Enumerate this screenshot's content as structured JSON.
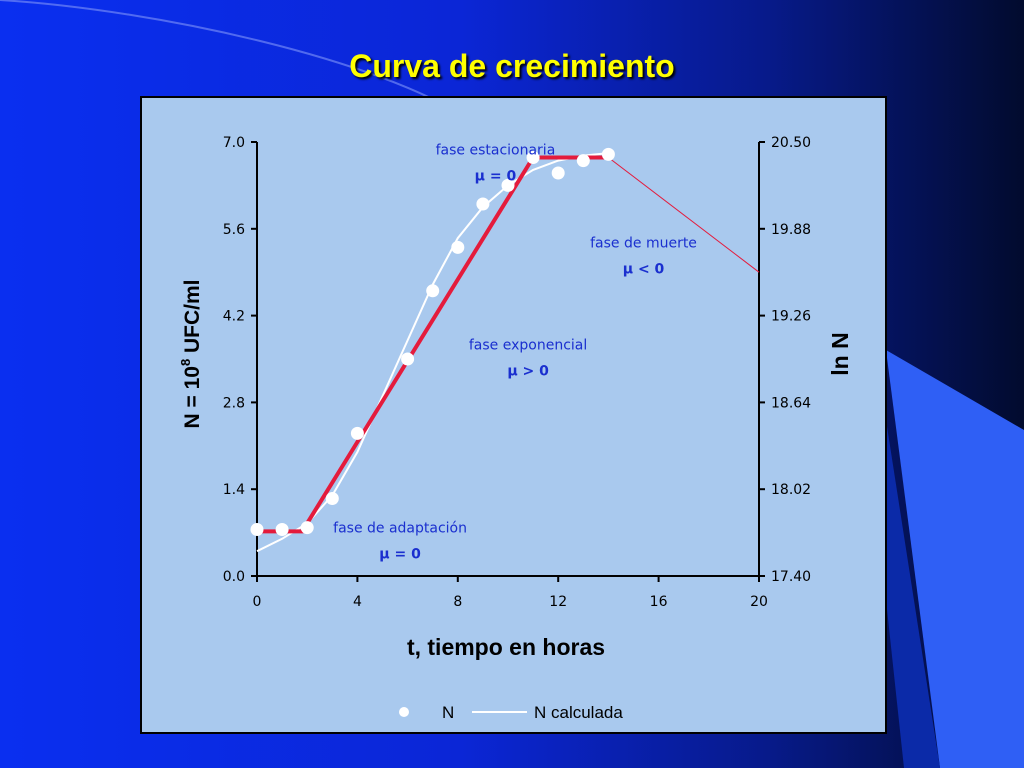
{
  "slide": {
    "title": "Curva de crecimiento"
  },
  "colors": {
    "accent_title": "#ffff00",
    "panel_bg": "#a9c9ee",
    "fit_line": "#e41b3c",
    "calc_line": "#ffffff",
    "death_line": "#e41b3c",
    "phase_text": "#1a2fcf"
  },
  "chart_data": {
    "type": "line",
    "title": "",
    "xlabel": "t, tiempo en horas",
    "ylabel_prefix": "N = 10",
    "ylabel_exp": "8",
    "ylabel_suffix": " UFC/ml",
    "y2label": "ln N",
    "xlim": [
      0,
      20
    ],
    "ylim": [
      0.0,
      7.0
    ],
    "y2lim": [
      17.4,
      20.5
    ],
    "x_ticks": [
      "0",
      "4",
      "8",
      "12",
      "16",
      "20"
    ],
    "y_ticks": [
      "0.0",
      "1.4",
      "2.8",
      "4.2",
      "5.6",
      "7.0"
    ],
    "y2_ticks": [
      "17.40",
      "18.02",
      "18.64",
      "19.26",
      "19.88",
      "20.50"
    ],
    "grid": false,
    "legend_position": "bottom",
    "series": [
      {
        "name": "N",
        "style": "markers",
        "x": [
          0,
          1,
          2,
          3,
          4,
          6,
          7,
          8,
          9,
          10,
          11,
          12,
          13,
          14
        ],
        "y": [
          0.75,
          0.75,
          0.78,
          1.25,
          2.3,
          3.5,
          4.6,
          5.3,
          6.0,
          6.3,
          6.75,
          6.5,
          6.7,
          6.8
        ]
      },
      {
        "name": "N calculada",
        "style": "line",
        "x": [
          0,
          1,
          2,
          3,
          4,
          5,
          6,
          7,
          8,
          9,
          10,
          11,
          12,
          13,
          14
        ],
        "y": [
          0.4,
          0.6,
          0.85,
          1.3,
          2.0,
          2.9,
          3.8,
          4.7,
          5.45,
          5.95,
          6.3,
          6.55,
          6.7,
          6.78,
          6.82
        ]
      },
      {
        "style": "fit",
        "x": [
          0.2,
          1.8,
          11,
          14
        ],
        "y": [
          0.72,
          0.72,
          6.75,
          6.75
        ]
      },
      {
        "style": "thin",
        "x": [
          14,
          20
        ],
        "y": [
          6.75,
          4.9
        ]
      }
    ],
    "annotations": [
      {
        "label": "fase estacionaria",
        "mu": "µ  =  0",
        "x": 9.5,
        "y": 6.8
      },
      {
        "label": "fase de muerte",
        "mu": "µ  <  0",
        "x": 15.4,
        "y": 5.3
      },
      {
        "label": "fase exponencial",
        "mu": "µ  >  0",
        "x": 10.8,
        "y": 3.65
      },
      {
        "label": "fase de adaptación",
        "mu": "µ  =  0",
        "x": 5.7,
        "y": 0.7
      }
    ]
  }
}
